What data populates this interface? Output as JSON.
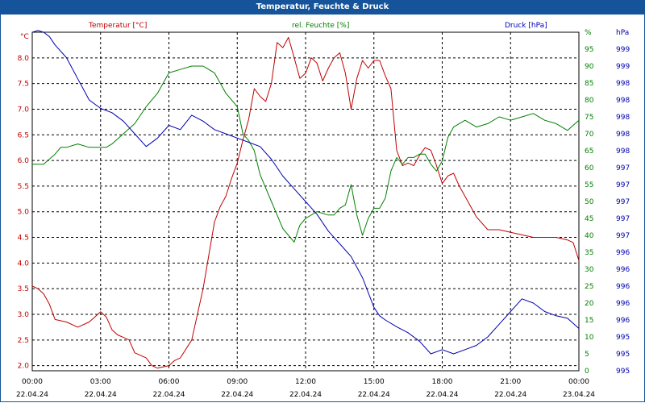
{
  "window": {
    "title": "Temperatur, Feuchte & Druck"
  },
  "series_labels": {
    "temperature": "Temperatur [°C]",
    "humidity": "rel. Feuchte [%]",
    "pressure": "Druck [hPa]"
  },
  "axis_units": {
    "left": "°C",
    "right_humidity": "%",
    "right_pressure": "hPa"
  },
  "colors": {
    "temperature": "#c00000",
    "humidity": "#008000",
    "pressure": "#0000b0",
    "title_bar": "#15549a",
    "grid": "#000000"
  },
  "chart_data": {
    "type": "line",
    "title": "Temperatur, Feuchte & Druck",
    "grid": true,
    "x_tick_times": [
      "00:00",
      "03:00",
      "06:00",
      "09:00",
      "12:00",
      "15:00",
      "18:00",
      "21:00",
      "00:00"
    ],
    "x_tick_dates": [
      "22.04.24",
      "22.04.24",
      "22.04.24",
      "22.04.24",
      "22.04.24",
      "22.04.24",
      "22.04.24",
      "22.04.24",
      "23.04.24"
    ],
    "axes": {
      "temperature": {
        "label": "°C",
        "range": [
          1.9,
          8.5
        ],
        "ticks": [
          "2.0",
          "2.5",
          "3.0",
          "3.5",
          "4.0",
          "4.5",
          "5.0",
          "5.5",
          "6.0",
          "6.5",
          "7.0",
          "7.5",
          "8.0"
        ],
        "tick_values": [
          2.0,
          2.5,
          3.0,
          3.5,
          4.0,
          4.5,
          5.0,
          5.5,
          6.0,
          6.5,
          7.0,
          7.5,
          8.0
        ]
      },
      "humidity": {
        "label": "%",
        "range": [
          0,
          100
        ],
        "ticks": [
          "0",
          "5",
          "10",
          "15",
          "20",
          "25",
          "30",
          "35",
          "40",
          "45",
          "50",
          "55",
          "60",
          "65",
          "70",
          "75",
          "80",
          "85",
          "90",
          "95",
          "%"
        ],
        "tick_values": [
          0,
          5,
          10,
          15,
          20,
          25,
          30,
          35,
          40,
          45,
          50,
          55,
          60,
          65,
          70,
          75,
          80,
          85,
          90,
          95,
          100
        ]
      },
      "pressure": {
        "label": "hPa",
        "ticks": [
          "995",
          "995",
          "995",
          "996",
          "996",
          "996",
          "996",
          "996",
          "997",
          "997",
          "997",
          "997",
          "997",
          "998",
          "998",
          "998",
          "998",
          "998",
          "999",
          "999",
          "hPa"
        ],
        "tick_values": [
          994.7,
          994.9,
          995.1,
          995.3,
          995.5,
          995.7,
          995.9,
          996.1,
          996.3,
          996.5,
          996.7,
          996.9,
          997.1,
          997.3,
          997.5,
          997.7,
          997.9,
          998.1,
          998.3,
          998.5,
          998.7
        ],
        "range": [
          994.7,
          998.7
        ]
      }
    },
    "series": [
      {
        "name": "Temperatur [°C]",
        "color": "#c00000",
        "axis": "temperature",
        "x": [
          0,
          0.25,
          0.5,
          0.75,
          1,
          1.5,
          2,
          2.5,
          2.75,
          3,
          3.25,
          3.5,
          3.75,
          4,
          4.25,
          4.5,
          5,
          5.25,
          5.5,
          6,
          6.25,
          6.5,
          7,
          7.5,
          8,
          8.25,
          8.5,
          8.75,
          9,
          9.25,
          9.5,
          9.75,
          10,
          10.25,
          10.5,
          10.75,
          11,
          11.25,
          11.5,
          11.75,
          12,
          12.25,
          12.5,
          12.75,
          13,
          13.25,
          13.5,
          13.75,
          14,
          14.25,
          14.5,
          14.75,
          15,
          15.25,
          15.5,
          15.75,
          16,
          16.25,
          16.5,
          16.75,
          17,
          17.25,
          17.5,
          17.75,
          18,
          18.25,
          18.5,
          18.75,
          19,
          19.5,
          20,
          20.5,
          21,
          21.5,
          22,
          22.5,
          23,
          23.5,
          23.75,
          24
        ],
        "y": [
          3.55,
          3.5,
          3.4,
          3.2,
          2.9,
          2.85,
          2.75,
          2.85,
          2.95,
          3.05,
          2.95,
          2.7,
          2.6,
          2.55,
          2.5,
          2.25,
          2.15,
          2.0,
          1.95,
          2.0,
          2.1,
          2.15,
          2.5,
          3.5,
          4.8,
          5.1,
          5.3,
          5.65,
          5.95,
          6.4,
          6.8,
          7.4,
          7.25,
          7.15,
          7.5,
          8.3,
          8.2,
          8.4,
          8.0,
          7.6,
          7.7,
          8.0,
          7.9,
          7.55,
          7.8,
          8.0,
          8.1,
          7.7,
          7.0,
          7.6,
          7.95,
          7.8,
          7.95,
          7.95,
          7.65,
          7.4,
          6.2,
          5.9,
          5.95,
          5.9,
          6.1,
          6.25,
          6.2,
          5.9,
          5.55,
          5.7,
          5.75,
          5.5,
          5.3,
          4.9,
          4.65,
          4.65,
          4.6,
          4.55,
          4.5,
          4.5,
          4.5,
          4.45,
          4.4,
          4.05
        ]
      },
      {
        "name": "rel. Feuchte [%]",
        "color": "#008000",
        "axis": "humidity",
        "x": [
          0,
          0.5,
          1,
          1.25,
          1.5,
          2,
          2.5,
          3,
          3.25,
          3.5,
          4,
          4.5,
          5,
          5.5,
          6,
          6.5,
          7,
          7.25,
          7.5,
          8,
          8.5,
          9,
          9.25,
          9.5,
          9.75,
          10,
          10.5,
          11,
          11.25,
          11.5,
          11.75,
          12,
          12.5,
          13,
          13.25,
          13.5,
          13.75,
          14,
          14.25,
          14.5,
          14.75,
          15,
          15.25,
          15.5,
          15.75,
          16,
          16.25,
          16.5,
          16.75,
          17,
          17.25,
          17.5,
          17.75,
          18,
          18.25,
          18.5,
          19,
          19.5,
          20,
          20.5,
          21,
          21.5,
          22,
          22.5,
          23,
          23.5,
          24
        ],
        "y": [
          61,
          61,
          64,
          66,
          66,
          67,
          66,
          66,
          66,
          67,
          70,
          73,
          78,
          82,
          88,
          89,
          90,
          90,
          90,
          88,
          82,
          78,
          70,
          68,
          65,
          58,
          50,
          42,
          40,
          38,
          43,
          45,
          47,
          46,
          46,
          48,
          49,
          55,
          46,
          40,
          45,
          48,
          48,
          51,
          59,
          63,
          61,
          63,
          63,
          64,
          64,
          61,
          59,
          62,
          69,
          72,
          74,
          72,
          73,
          75,
          74,
          75,
          76,
          74,
          73,
          71,
          74
        ]
      },
      {
        "name": "Druck [hPa]",
        "color": "#0000b0",
        "axis": "pressure",
        "x": [
          0,
          0.25,
          0.5,
          0.75,
          1,
          1.5,
          2,
          2.5,
          3,
          3.5,
          4,
          4.5,
          5,
          5.5,
          6,
          6.5,
          7,
          7.5,
          8,
          8.5,
          9,
          9.5,
          10,
          10.5,
          11,
          11.5,
          12,
          12.5,
          13,
          13.5,
          14,
          14.5,
          15,
          15.25,
          15.5,
          16,
          16.5,
          17,
          17.5,
          18,
          18.5,
          19,
          19.5,
          20,
          20.5,
          21,
          21.5,
          22,
          22.5,
          23,
          23.5,
          24
        ],
        "y": [
          998.7,
          998.72,
          998.7,
          998.65,
          998.55,
          998.4,
          998.15,
          997.9,
          997.8,
          997.75,
          997.65,
          997.5,
          997.35,
          997.45,
          997.6,
          997.55,
          997.72,
          997.65,
          997.55,
          997.5,
          997.45,
          997.4,
          997.35,
          997.2,
          997.0,
          996.85,
          996.7,
          996.55,
          996.35,
          996.2,
          996.05,
          995.8,
          995.45,
          995.35,
          995.3,
          995.22,
          995.15,
          995.05,
          994.9,
          994.95,
          994.9,
          994.95,
          995.0,
          995.1,
          995.25,
          995.4,
          995.55,
          995.5,
          995.4,
          995.35,
          995.32,
          995.2
        ]
      }
    ]
  }
}
